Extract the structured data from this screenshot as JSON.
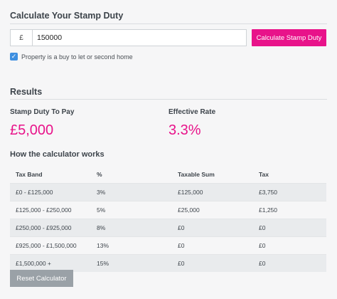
{
  "calculator": {
    "title": "Calculate Your Stamp Duty",
    "currency_symbol": "£",
    "amount_value": "150000",
    "calculate_label": "Calculate Stamp Duty",
    "buy_to_let_label": "Property is a buy to let or second home",
    "buy_to_let_checked": true
  },
  "results": {
    "title": "Results",
    "stamp_duty_label": "Stamp Duty To Pay",
    "stamp_duty_value": "£5,000",
    "effective_rate_label": "Effective Rate",
    "effective_rate_value": "3.3%"
  },
  "how": {
    "title": "How the calculator works",
    "columns": [
      "Tax Band",
      "%",
      "Taxable Sum",
      "Tax"
    ],
    "rows": [
      [
        "£0 - £125,000",
        "3%",
        "£125,000",
        "£3,750"
      ],
      [
        "£125,000 - £250,000",
        "5%",
        "£25,000",
        "£1,250"
      ],
      [
        "£250,000 - £925,000",
        "8%",
        "£0",
        "£0"
      ],
      [
        "£925,000 - £1,500,000",
        "13%",
        "£0",
        "£0"
      ],
      [
        "£1,500,000 +",
        "15%",
        "£0",
        "£0"
      ]
    ]
  },
  "reset_label": "Reset Calculator",
  "colors": {
    "accent": "#e8138a",
    "checkbox": "#3e8fe0",
    "reset_button": "#9aa1a7"
  }
}
